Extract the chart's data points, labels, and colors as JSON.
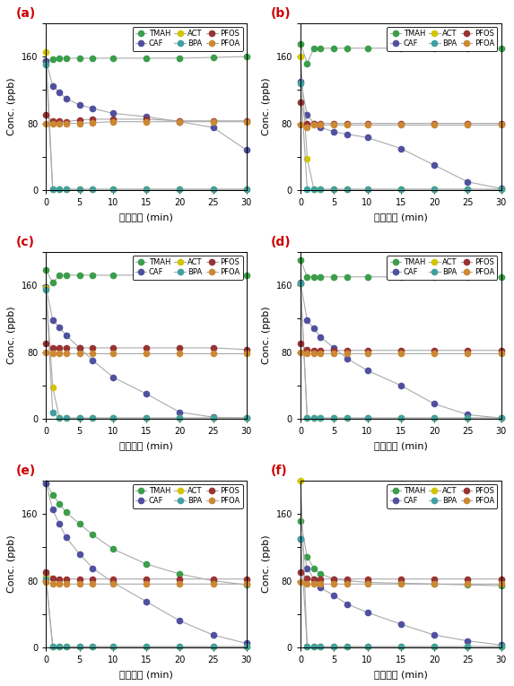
{
  "x": [
    0,
    1,
    2,
    3,
    5,
    7,
    10,
    15,
    20,
    25,
    30
  ],
  "series": {
    "TMAH": {
      "color": "#3a9e4a"
    },
    "CAF": {
      "color": "#5050a0"
    },
    "ACT": {
      "color": "#d4c400"
    },
    "BPA": {
      "color": "#40a0a0"
    },
    "PFOS": {
      "color": "#993333"
    },
    "PFOA": {
      "color": "#cc8833"
    }
  },
  "panels": [
    {
      "label": "(a)",
      "TMAH": [
        155,
        157,
        158,
        158,
        158,
        158,
        158,
        158,
        158,
        159,
        160
      ],
      "CAF": [
        155,
        125,
        117,
        110,
        102,
        98,
        92,
        88,
        82,
        75,
        48
      ],
      "ACT": [
        165,
        1,
        1,
        1,
        1,
        1,
        1,
        1,
        1,
        1,
        1
      ],
      "BPA": [
        150,
        1,
        1,
        1,
        1,
        1,
        1,
        1,
        1,
        1,
        1
      ],
      "PFOS": [
        90,
        83,
        83,
        82,
        84,
        85,
        85,
        85,
        83,
        83,
        83
      ],
      "PFOA": [
        80,
        80,
        80,
        80,
        80,
        81,
        82,
        82,
        82,
        82,
        82
      ]
    },
    {
      "label": "(b)",
      "TMAH": [
        175,
        152,
        170,
        170,
        170,
        170,
        170,
        170,
        170,
        170,
        170
      ],
      "CAF": [
        130,
        90,
        80,
        75,
        70,
        67,
        63,
        50,
        30,
        10,
        2
      ],
      "ACT": [
        160,
        38,
        1,
        1,
        1,
        1,
        1,
        1,
        1,
        1,
        1
      ],
      "BPA": [
        128,
        1,
        1,
        1,
        1,
        1,
        1,
        1,
        1,
        1,
        1
      ],
      "PFOS": [
        105,
        80,
        80,
        80,
        80,
        80,
        80,
        80,
        80,
        80,
        80
      ],
      "PFOA": [
        78,
        75,
        78,
        78,
        78,
        78,
        78,
        78,
        78,
        78,
        78
      ]
    },
    {
      "label": "(c)",
      "TMAH": [
        178,
        163,
        172,
        172,
        172,
        172,
        172,
        172,
        172,
        172,
        172
      ],
      "CAF": [
        158,
        118,
        110,
        100,
        85,
        70,
        50,
        30,
        8,
        2,
        1
      ],
      "ACT": [
        157,
        38,
        1,
        1,
        1,
        1,
        1,
        1,
        1,
        1,
        1
      ],
      "BPA": [
        155,
        8,
        1,
        1,
        1,
        1,
        1,
        1,
        1,
        1,
        1
      ],
      "PFOS": [
        90,
        85,
        85,
        85,
        85,
        85,
        85,
        85,
        85,
        85,
        83
      ],
      "PFOA": [
        80,
        78,
        78,
        78,
        78,
        78,
        78,
        78,
        78,
        78,
        78
      ]
    },
    {
      "label": "(d)",
      "TMAH": [
        190,
        170,
        170,
        170,
        170,
        170,
        170,
        170,
        170,
        170,
        170
      ],
      "CAF": [
        163,
        118,
        108,
        98,
        85,
        72,
        58,
        40,
        18,
        5,
        1
      ],
      "ACT": [
        162,
        1,
        1,
        1,
        1,
        1,
        1,
        1,
        1,
        1,
        1
      ],
      "BPA": [
        162,
        1,
        1,
        1,
        1,
        1,
        1,
        1,
        1,
        1,
        1
      ],
      "PFOS": [
        90,
        83,
        82,
        82,
        82,
        82,
        82,
        82,
        82,
        82,
        82
      ],
      "PFOA": [
        80,
        78,
        78,
        78,
        78,
        78,
        78,
        78,
        78,
        78,
        78
      ]
    },
    {
      "label": "(e)",
      "TMAH": [
        197,
        183,
        172,
        162,
        148,
        135,
        118,
        100,
        88,
        80,
        75
      ],
      "CAF": [
        197,
        165,
        148,
        132,
        112,
        95,
        78,
        55,
        32,
        15,
        5
      ],
      "ACT": [
        85,
        1,
        1,
        1,
        1,
        1,
        1,
        1,
        1,
        1,
        1
      ],
      "BPA": [
        82,
        1,
        1,
        1,
        1,
        1,
        1,
        1,
        1,
        1,
        1
      ],
      "PFOS": [
        90,
        83,
        82,
        82,
        82,
        82,
        82,
        82,
        82,
        82,
        82
      ],
      "PFOA": [
        78,
        76,
        76,
        76,
        76,
        76,
        76,
        76,
        76,
        76,
        76
      ]
    },
    {
      "label": "(f)",
      "TMAH": [
        152,
        108,
        95,
        88,
        82,
        80,
        78,
        77,
        76,
        75,
        74
      ],
      "CAF": [
        130,
        95,
        82,
        72,
        62,
        52,
        42,
        28,
        15,
        8,
        3
      ],
      "ACT": [
        200,
        1,
        1,
        1,
        1,
        1,
        1,
        1,
        1,
        1,
        1
      ],
      "BPA": [
        130,
        1,
        1,
        1,
        1,
        1,
        1,
        1,
        1,
        1,
        1
      ],
      "PFOS": [
        90,
        83,
        82,
        82,
        82,
        82,
        82,
        82,
        82,
        82,
        82
      ],
      "PFOA": [
        78,
        76,
        76,
        76,
        76,
        76,
        76,
        76,
        76,
        76,
        76
      ]
    }
  ],
  "legend_order": [
    "TMAH",
    "CAF",
    "ACT",
    "BPA",
    "PFOS",
    "PFOA"
  ],
  "xlabel": "반응시간 (min)",
  "ylabel": "Conc. (ppb)",
  "ylim": [
    0,
    200
  ],
  "yticks": [
    0,
    40,
    80,
    120,
    160,
    200
  ],
  "xticks": [
    0,
    5,
    10,
    15,
    20,
    25,
    30
  ],
  "background_color": "#ffffff",
  "line_color": "#aaaaaa",
  "marker_size": 4.5,
  "linewidth": 0.8
}
